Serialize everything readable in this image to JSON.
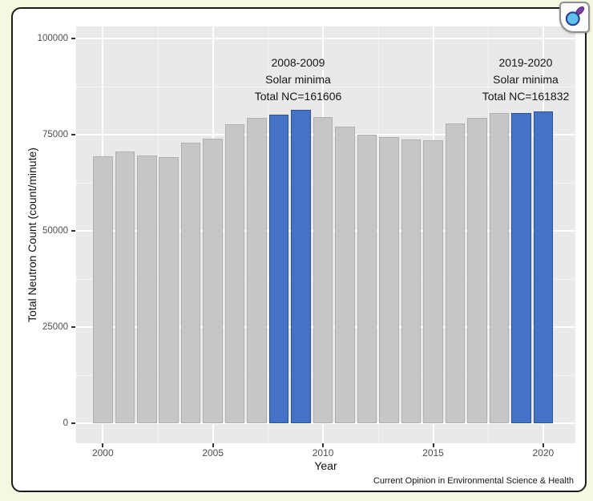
{
  "figure": {
    "outer_background": "#f6f7e1",
    "card_background": "#ffffff",
    "border_color": "#1b1b1b"
  },
  "chart_data": {
    "type": "bar",
    "title": "",
    "xlabel": "Year",
    "ylabel": "Total Neutron Count (count/minute)",
    "x": [
      2000,
      2001,
      2002,
      2003,
      2004,
      2005,
      2006,
      2007,
      2008,
      2009,
      2010,
      2011,
      2012,
      2013,
      2014,
      2015,
      2016,
      2017,
      2018,
      2019,
      2020
    ],
    "values": [
      69400,
      70600,
      69600,
      69100,
      73000,
      73900,
      77700,
      79400,
      80150,
      81456,
      79500,
      77000,
      74900,
      74400,
      73700,
      73500,
      77900,
      79400,
      80600,
      80700,
      81132
    ],
    "highlighted_years": [
      2008,
      2009,
      2019,
      2020
    ],
    "ylim": [
      0,
      100000
    ],
    "yticks": [
      0,
      25000,
      50000,
      75000,
      100000
    ],
    "ytick_labels": [
      "0",
      "25000",
      "50000",
      "75000",
      "100000"
    ],
    "xticks": [
      2000,
      2005,
      2010,
      2015,
      2020
    ],
    "panel_background": "#e9e9e9",
    "grid": {
      "major_color": "#ffffff",
      "minor_on": true,
      "legend_position": "none"
    },
    "colors": {
      "bar_default": "#c6c6c6",
      "bar_default_border": "#b0b0b0",
      "bar_highlight": "#4472c4",
      "bar_highlight_border": "#2e5395"
    },
    "annotations": [
      {
        "lines": [
          "2008-2009",
          "Solar minima",
          "Total NC=161606"
        ]
      },
      {
        "lines": [
          "2019-2020",
          "Solar minima",
          "Total NC=161832"
        ]
      }
    ]
  },
  "credit": "Current Opinion in Environmental Science & Health",
  "logo": {
    "icon": "magnifier-icon",
    "circle_fill": "#5fc3ec",
    "circle_stroke": "#27418f",
    "handle_fill": "#7b3fa0",
    "handle_stroke": "#532a74"
  }
}
